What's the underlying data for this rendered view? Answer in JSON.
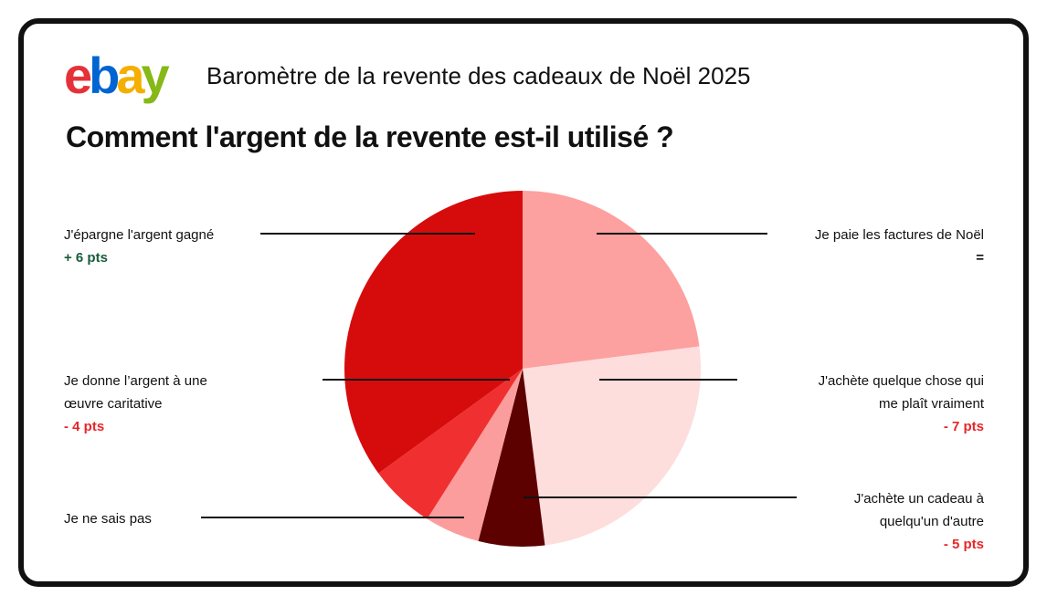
{
  "logo": "ebay",
  "logo_colors": [
    "#e53238",
    "#0064d2",
    "#f5af02",
    "#86b817"
  ],
  "chart_data": {
    "type": "pie",
    "title": "Baromètre de la revente des cadeaux de Noël 2025",
    "subtitle": "Comment l'argent de la revente est-il utilisé ?",
    "categories": [
      "Je paie les factures de Noël",
      "J'achète quelque chose qui\nme plaît vraiment",
      "J'achète un cadeau à\nquelqu'un d'autre",
      "Je ne sais pas",
      "Je donne l’argent à une\nœuvre caritative",
      "J'épargne l'argent gagné"
    ],
    "values": [
      23,
      25,
      6,
      5,
      6,
      35
    ],
    "colors": [
      "#fda0a0",
      "#fedddd",
      "#5c0000",
      "#fc9d9d",
      "#f03030",
      "#d60c0c"
    ],
    "changes": [
      "=",
      "- 7 pts",
      "- 5 pts",
      null,
      "- 4 pts",
      "+ 6 pts"
    ],
    "change_colors": [
      "#111111",
      "#e8262a",
      "#e8262a",
      null,
      "#e8262a",
      "#1a5c3a"
    ]
  }
}
